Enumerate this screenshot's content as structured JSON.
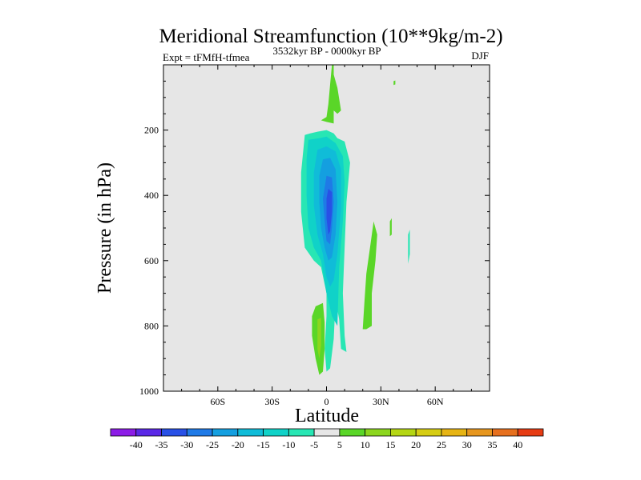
{
  "chart_data": {
    "type": "heatmap",
    "title": "Meridional Streamfunction (10**9kg/m-2)",
    "left_label": "Expt = tFMfH-tfmea",
    "center_label": "3532kyr BP - 0000kyr BP",
    "right_label": "DJF",
    "xlabel": "Latitude",
    "ylabel": "Pressure (in hPa)",
    "xlim": [
      -90,
      90
    ],
    "ylim": [
      1000,
      0
    ],
    "x_ticks": [
      {
        "value": -60,
        "label": "60S"
      },
      {
        "value": -30,
        "label": "30S"
      },
      {
        "value": 0,
        "label": "0"
      },
      {
        "value": 30,
        "label": "30N"
      },
      {
        "value": 60,
        "label": "60N"
      }
    ],
    "y_ticks": [
      {
        "value": 200,
        "label": "200"
      },
      {
        "value": 400,
        "label": "400"
      },
      {
        "value": 600,
        "label": "600"
      },
      {
        "value": 800,
        "label": "800"
      },
      {
        "value": 1000,
        "label": "1000"
      }
    ],
    "background_color": "#e6e6e6",
    "colorbar": {
      "labels": [
        "-40",
        "-35",
        "-30",
        "-25",
        "-20",
        "-15",
        "-10",
        "-5",
        "5",
        "10",
        "15",
        "20",
        "25",
        "30",
        "35",
        "40"
      ],
      "colors": [
        "#8c1ce6",
        "#5a28e6",
        "#2850e6",
        "#1f7ae6",
        "#149fe0",
        "#10bcd8",
        "#10d2c8",
        "#28e6b4",
        "#e6e6e6",
        "#5ad628",
        "#8cd61e",
        "#b4d614",
        "#d6cd14",
        "#e6b414",
        "#e6961e",
        "#e6701e",
        "#e63c14"
      ]
    },
    "contours": [
      {
        "name": "tropical-negative-outer",
        "level": "-10 to -5",
        "color": "#28e6b4",
        "points": [
          [
            -12,
            215
          ],
          [
            -9,
            210
          ],
          [
            -5,
            205
          ],
          [
            0,
            200
          ],
          [
            4,
            210
          ],
          [
            6,
            225
          ],
          [
            10,
            235
          ],
          [
            13,
            300
          ],
          [
            11,
            420
          ],
          [
            10,
            560
          ],
          [
            9,
            700
          ],
          [
            10,
            830
          ],
          [
            11,
            880
          ],
          [
            8,
            870
          ],
          [
            7,
            780
          ],
          [
            5,
            720
          ],
          [
            4,
            840
          ],
          [
            2,
            930
          ],
          [
            0,
            940
          ],
          [
            -1,
            870
          ],
          [
            0,
            770
          ],
          [
            0,
            700
          ],
          [
            -3,
            620
          ],
          [
            -7,
            600
          ],
          [
            -12,
            560
          ],
          [
            -14,
            450
          ],
          [
            -14,
            330
          ]
        ]
      },
      {
        "name": "tropical-negative-1",
        "level": "-15 to -10",
        "color": "#10d2c8",
        "points": [
          [
            -10,
            230
          ],
          [
            -4,
            225
          ],
          [
            0,
            220
          ],
          [
            5,
            240
          ],
          [
            9,
            280
          ],
          [
            10,
            360
          ],
          [
            9,
            480
          ],
          [
            7,
            620
          ],
          [
            6,
            800
          ],
          [
            3,
            770
          ],
          [
            0,
            700
          ],
          [
            -3,
            600
          ],
          [
            -7,
            560
          ],
          [
            -10,
            500
          ],
          [
            -11,
            400
          ],
          [
            -11,
            290
          ]
        ]
      },
      {
        "name": "tropical-negative-2",
        "level": "-20 to -15",
        "color": "#10bcd8",
        "points": [
          [
            -5,
            260
          ],
          [
            0,
            250
          ],
          [
            5,
            265
          ],
          [
            8,
            320
          ],
          [
            8,
            440
          ],
          [
            6,
            580
          ],
          [
            4,
            660
          ],
          [
            2,
            680
          ],
          [
            0,
            650
          ],
          [
            -2,
            580
          ],
          [
            -5,
            520
          ],
          [
            -7,
            430
          ],
          [
            -7,
            330
          ]
        ]
      },
      {
        "name": "tropical-negative-3",
        "level": "-25 to -20",
        "color": "#149fe0",
        "points": [
          [
            -2,
            290
          ],
          [
            2,
            285
          ],
          [
            5,
            320
          ],
          [
            6,
            420
          ],
          [
            5,
            520
          ],
          [
            3,
            590
          ],
          [
            1,
            600
          ],
          [
            -1,
            560
          ],
          [
            -3,
            500
          ],
          [
            -4,
            420
          ],
          [
            -4,
            340
          ]
        ]
      },
      {
        "name": "tropical-negative-4",
        "level": "-30 to -25",
        "color": "#1f7ae6",
        "points": [
          [
            0,
            340
          ],
          [
            3,
            345
          ],
          [
            4,
            420
          ],
          [
            3,
            500
          ],
          [
            2,
            550
          ],
          [
            0,
            540
          ],
          [
            -1,
            480
          ],
          [
            -2,
            410
          ]
        ]
      },
      {
        "name": "tropical-negative-core",
        "level": "-35 to -30",
        "color": "#2850e6",
        "points": [
          [
            1,
            380
          ],
          [
            3,
            390
          ],
          [
            3,
            450
          ],
          [
            2,
            510
          ],
          [
            1,
            520
          ],
          [
            0,
            470
          ],
          [
            0,
            410
          ]
        ]
      },
      {
        "name": "upper-positive-plume",
        "level": "5 to 10",
        "color": "#5ad628",
        "points": [
          [
            3,
            0
          ],
          [
            4,
            0
          ],
          [
            4,
            30
          ],
          [
            6,
            70
          ],
          [
            8,
            140
          ],
          [
            6,
            150
          ],
          [
            4,
            140
          ],
          [
            4,
            180
          ],
          [
            0,
            175
          ],
          [
            -3,
            170
          ],
          [
            0,
            160
          ],
          [
            1,
            120
          ],
          [
            2,
            60
          ]
        ]
      },
      {
        "name": "south-lower-positive",
        "level": "5 to 10",
        "color": "#5ad628",
        "points": [
          [
            -6,
            740
          ],
          [
            -2,
            730
          ],
          [
            -1,
            790
          ],
          [
            -1,
            870
          ],
          [
            -2,
            940
          ],
          [
            -4,
            950
          ],
          [
            -6,
            900
          ],
          [
            -8,
            830
          ],
          [
            -8,
            770
          ]
        ]
      },
      {
        "name": "south-lower-positive-core",
        "level": "10 to 15",
        "color": "#8cd61e",
        "points": [
          [
            -5,
            780
          ],
          [
            -3,
            775
          ],
          [
            -3,
            860
          ],
          [
            -4,
            900
          ],
          [
            -5,
            870
          ]
        ]
      },
      {
        "name": "north-positive-tongue",
        "level": "5 to 10",
        "color": "#5ad628",
        "points": [
          [
            26,
            480
          ],
          [
            28,
            520
          ],
          [
            27,
            600
          ],
          [
            25,
            700
          ],
          [
            25,
            800
          ],
          [
            22,
            810
          ],
          [
            20,
            810
          ],
          [
            21,
            720
          ],
          [
            22,
            640
          ],
          [
            24,
            560
          ]
        ]
      },
      {
        "name": "north-positive-sliver",
        "level": "5 to 10",
        "color": "#5ad628",
        "points": [
          [
            35,
            480
          ],
          [
            36,
            470
          ],
          [
            36,
            520
          ],
          [
            35,
            525
          ]
        ]
      },
      {
        "name": "north-negative-sliver",
        "level": "-10 to -5",
        "color": "#28e6b4",
        "points": [
          [
            45,
            520
          ],
          [
            46,
            505
          ],
          [
            46,
            580
          ],
          [
            45,
            610
          ]
        ]
      },
      {
        "name": "upper-positive-dot",
        "level": "5 to 10",
        "color": "#5ad628",
        "points": [
          [
            37,
            50
          ],
          [
            38,
            48
          ],
          [
            38,
            60
          ],
          [
            37,
            62
          ]
        ]
      }
    ]
  }
}
